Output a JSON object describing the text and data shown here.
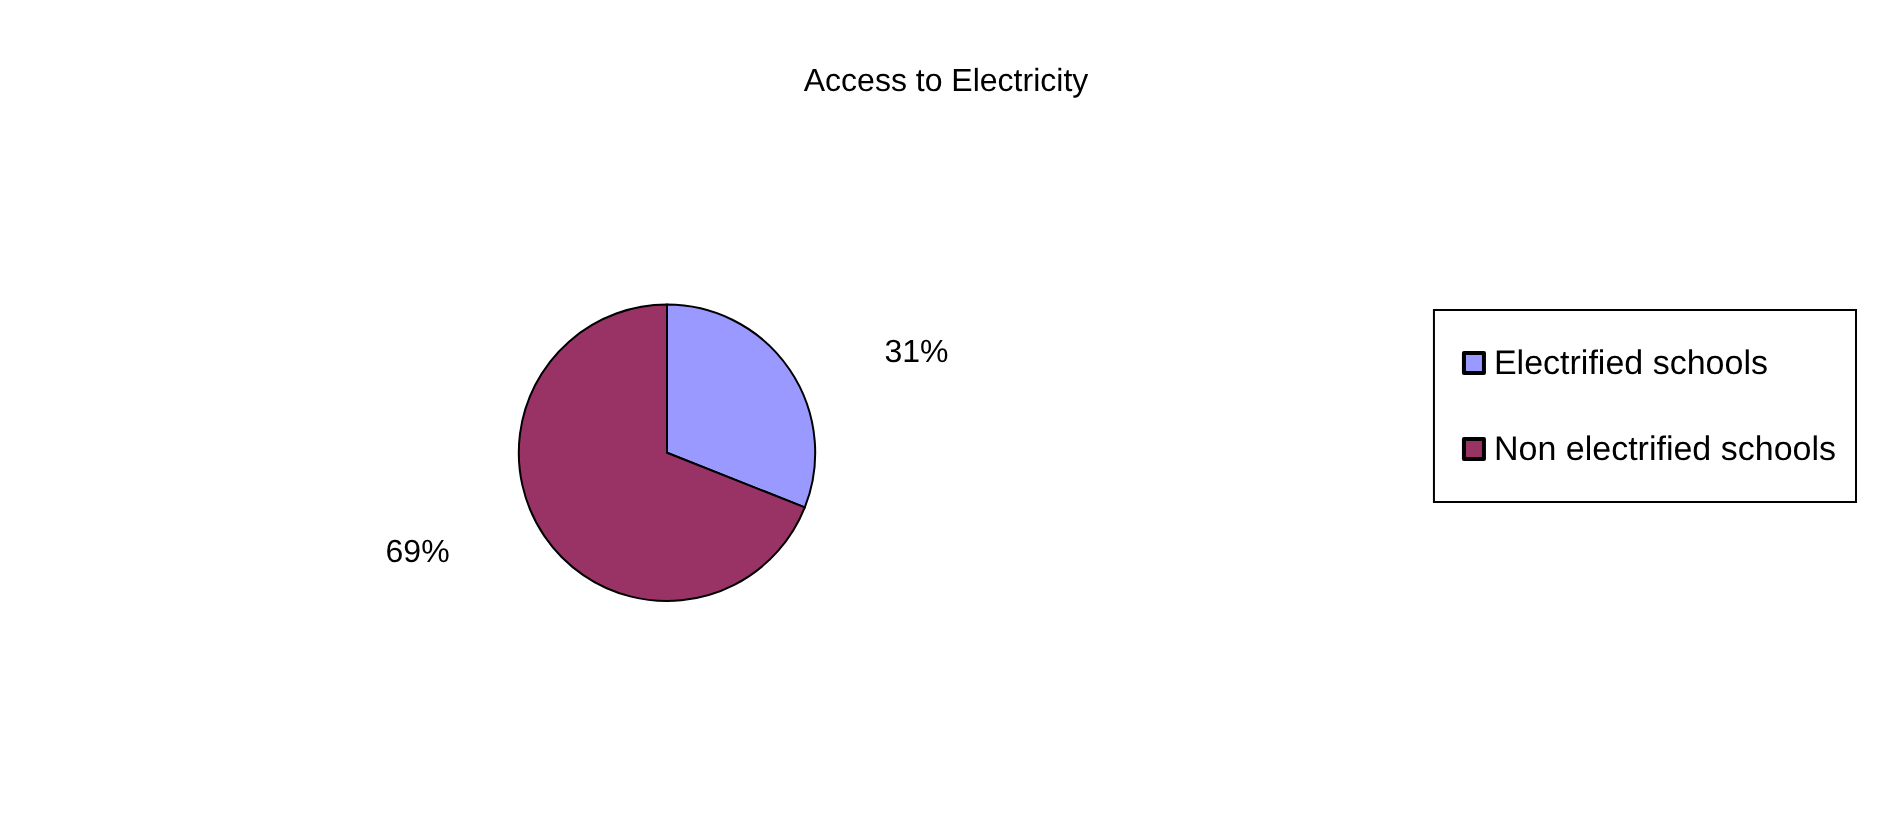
{
  "chart_data": {
    "type": "pie",
    "title": "Access to Electricity",
    "categories": [
      "Electrified schools",
      "Non electrified schools"
    ],
    "values": [
      31,
      69
    ],
    "colors": [
      "#9999ff",
      "#993366"
    ],
    "value_labels": [
      "31%",
      "69%"
    ],
    "legend": "right"
  }
}
